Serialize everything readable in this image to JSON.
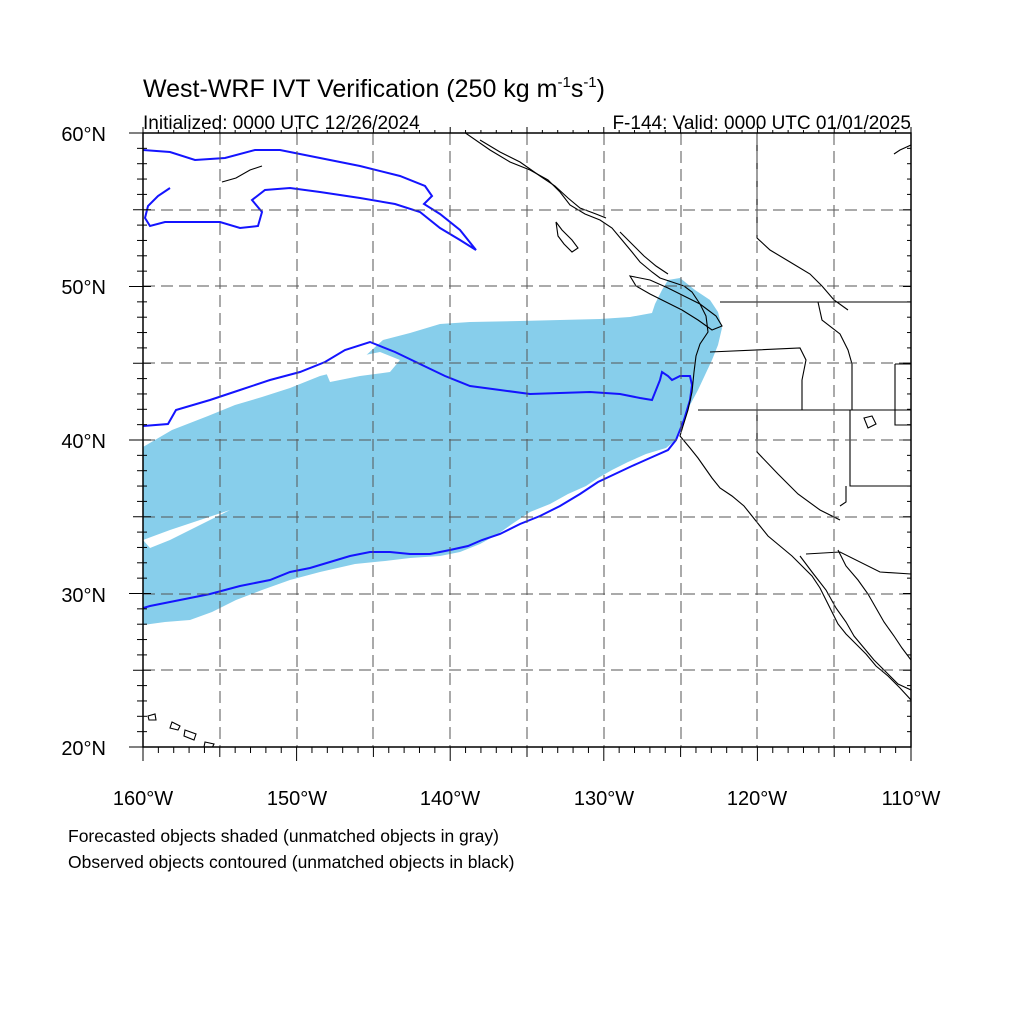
{
  "title": {
    "main": "West-WRF IVT Verification (250 kg m",
    "sup1": "-1",
    "mid": "s",
    "sup2": "-1",
    "close": ")"
  },
  "initialized": "Initialized: 0000 UTC 12/26/2024",
  "valid": "F-144: Valid: 0000 UTC 01/01/2025",
  "lat_labels": [
    "60°N",
    "50°N",
    "40°N",
    "30°N",
    "20°N"
  ],
  "lon_labels": [
    "160°W",
    "150°W",
    "140°W",
    "130°W",
    "120°W",
    "110°W"
  ],
  "footer": {
    "line1": "Forecasted objects shaded (unmatched objects in gray)",
    "line2": "Observed objects contoured (unmatched objects in black)"
  },
  "map": {
    "extent": {
      "lon": [
        -160,
        -110
      ],
      "lat": [
        20,
        60
      ]
    },
    "grid_interval_deg": 5,
    "grid_style": "dashed",
    "colors": {
      "forecast_fill": "#87ceeb",
      "observed_contour": "#1414ff",
      "coastline": "#000000",
      "grid": "#555555"
    }
  }
}
